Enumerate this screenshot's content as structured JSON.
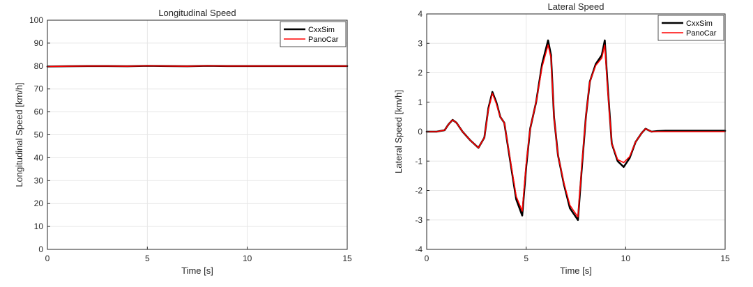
{
  "colors": {
    "CxxSim": "#000000",
    "PanoCar": "#ff0000",
    "grid": "#e6e6e6",
    "axis": "#262626"
  },
  "chart_data": [
    {
      "type": "line",
      "title": "Longitudinal Speed",
      "xlabel": "Time [s]",
      "ylabel": "Longitudinal Speed [km/h]",
      "xlim": [
        0,
        15
      ],
      "ylim": [
        0,
        100
      ],
      "xticks": [
        0,
        5,
        10,
        15
      ],
      "yticks": [
        0,
        10,
        20,
        30,
        40,
        50,
        60,
        70,
        80,
        90,
        100
      ],
      "grid": true,
      "legend": "top-right",
      "series": [
        {
          "name": "CxxSim",
          "x": [
            0,
            1,
            2,
            3,
            4,
            5,
            6,
            7,
            8,
            9,
            10,
            11,
            12,
            13,
            14,
            15
          ],
          "y": [
            79.8,
            79.9,
            80.0,
            80.0,
            79.9,
            80.1,
            80.0,
            79.9,
            80.1,
            80.0,
            80.0,
            80.0,
            80.0,
            80.0,
            80.0,
            80.0
          ]
        },
        {
          "name": "PanoCar",
          "x": [
            0,
            1,
            2,
            3,
            4,
            5,
            6,
            7,
            8,
            9,
            10,
            11,
            12,
            13,
            14,
            15
          ],
          "y": [
            79.8,
            79.9,
            80.0,
            80.0,
            79.9,
            80.1,
            80.0,
            79.9,
            80.1,
            80.0,
            80.0,
            80.0,
            80.0,
            80.0,
            80.0,
            80.0
          ]
        }
      ]
    },
    {
      "type": "line",
      "title": "Lateral Speed",
      "xlabel": "Time [s]",
      "ylabel": "Lateral Speed [km/h]",
      "xlim": [
        0,
        15
      ],
      "ylim": [
        -4,
        4
      ],
      "xticks": [
        0,
        5,
        10,
        15
      ],
      "yticks": [
        -4,
        -3,
        -2,
        -1,
        0,
        1,
        2,
        3,
        4
      ],
      "grid": true,
      "legend": "top-right",
      "series": [
        {
          "name": "CxxSim",
          "x": [
            0,
            0.5,
            0.9,
            1.1,
            1.3,
            1.5,
            1.8,
            2.2,
            2.6,
            2.9,
            3.1,
            3.3,
            3.5,
            3.7,
            3.9,
            4.2,
            4.5,
            4.8,
            5.0,
            5.2,
            5.5,
            5.8,
            6.1,
            6.25,
            6.4,
            6.6,
            6.9,
            7.2,
            7.4,
            7.6,
            7.8,
            8.0,
            8.2,
            8.5,
            8.8,
            8.95,
            9.1,
            9.3,
            9.6,
            9.9,
            10.2,
            10.5,
            10.8,
            11.0,
            11.3,
            11.6,
            12.0,
            13.0,
            15.0
          ],
          "y": [
            0,
            0,
            0.05,
            0.25,
            0.4,
            0.3,
            0.0,
            -0.3,
            -0.55,
            -0.2,
            0.8,
            1.35,
            1.0,
            0.5,
            0.3,
            -1.0,
            -2.3,
            -2.85,
            -1.2,
            0.1,
            1.0,
            2.3,
            3.1,
            2.6,
            0.5,
            -0.8,
            -1.8,
            -2.6,
            -2.8,
            -3.0,
            -1.2,
            0.5,
            1.7,
            2.3,
            2.6,
            3.1,
            1.5,
            -0.4,
            -1.0,
            -1.2,
            -0.9,
            -0.35,
            -0.05,
            0.1,
            0.0,
            0.02,
            0.03,
            0.03,
            0.03
          ]
        },
        {
          "name": "PanoCar",
          "x": [
            0,
            0.5,
            0.9,
            1.1,
            1.3,
            1.5,
            1.8,
            2.2,
            2.6,
            2.9,
            3.1,
            3.3,
            3.5,
            3.7,
            3.9,
            4.2,
            4.5,
            4.8,
            5.0,
            5.2,
            5.5,
            5.8,
            6.1,
            6.25,
            6.4,
            6.6,
            6.9,
            7.2,
            7.4,
            7.6,
            7.8,
            8.0,
            8.2,
            8.5,
            8.8,
            8.95,
            9.1,
            9.3,
            9.6,
            9.9,
            10.2,
            10.5,
            10.8,
            11.0,
            11.3,
            11.6,
            12.0,
            13.0,
            15.0
          ],
          "y": [
            0,
            0,
            0.05,
            0.25,
            0.4,
            0.3,
            0.0,
            -0.3,
            -0.55,
            -0.2,
            0.75,
            1.3,
            0.95,
            0.5,
            0.3,
            -0.95,
            -2.2,
            -2.7,
            -1.1,
            0.1,
            1.0,
            2.2,
            2.95,
            2.5,
            0.5,
            -0.8,
            -1.75,
            -2.5,
            -2.7,
            -2.9,
            -1.1,
            0.5,
            1.7,
            2.25,
            2.5,
            2.95,
            1.4,
            -0.4,
            -0.95,
            -1.05,
            -0.85,
            -0.35,
            -0.05,
            0.1,
            0.0,
            0.0,
            0.0,
            0.0,
            0.0
          ]
        }
      ]
    }
  ]
}
